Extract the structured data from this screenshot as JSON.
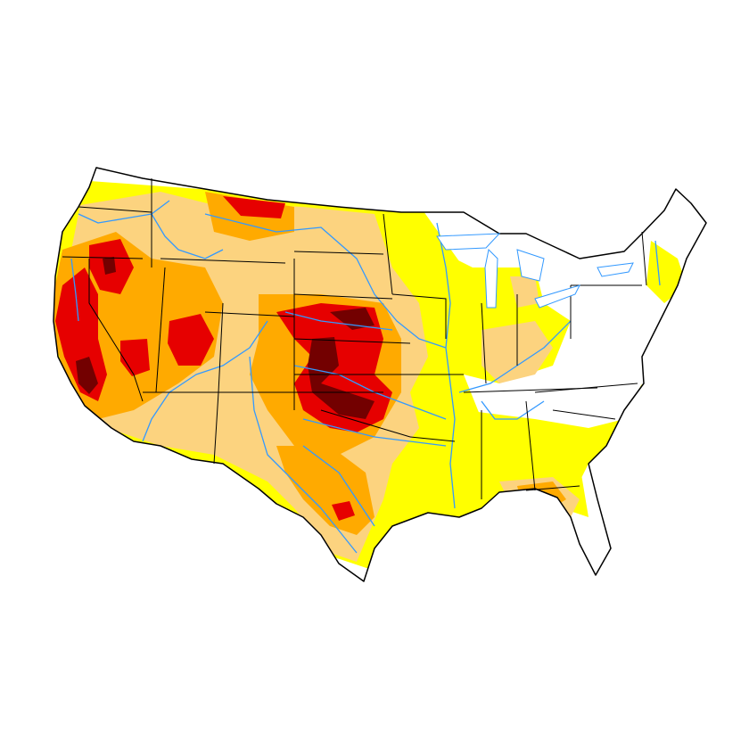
{
  "map": {
    "subject": "contiguous-united-states",
    "style": "drought-intensity-shaded",
    "colors": {
      "background": "#ffffff",
      "abnormally_dry": "#ffff00",
      "moderate": "#fcd37f",
      "severe": "#ffaa00",
      "extreme": "#e60000",
      "exceptional": "#730000",
      "rivers": "#3399ff",
      "borders": "#000000"
    },
    "layers": [
      "drought-shading",
      "rivers",
      "state-borders",
      "nation-outline"
    ]
  }
}
